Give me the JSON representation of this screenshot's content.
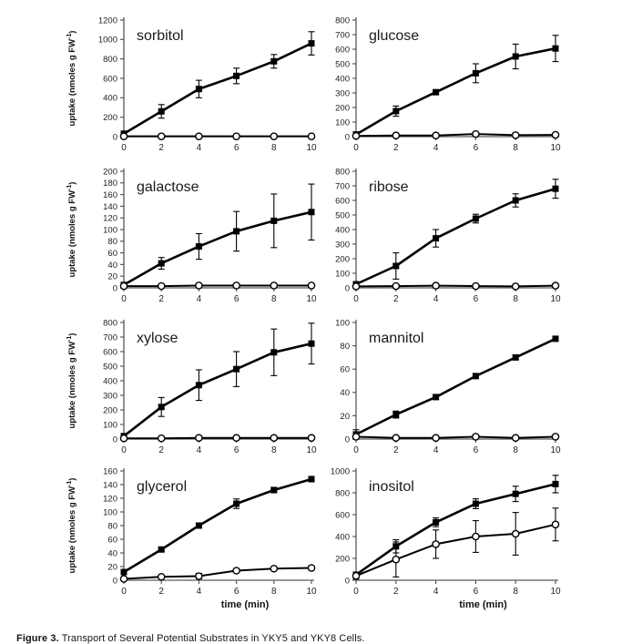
{
  "page": {
    "background": "#ffffff"
  },
  "caption": {
    "label": "Figure 3.",
    "text": " Transport of Several Potential Substrates in YKY5 and YKY8 Cells."
  },
  "axes": {
    "ylabel_main": "uptake (nmoles g FW",
    "ylabel_sup": "-1",
    "ylabel_end": ")",
    "xlabel": "time (min)",
    "xticks": [
      0,
      2,
      4,
      6,
      8,
      10
    ],
    "xlim": [
      0,
      10
    ]
  },
  "colors": {
    "data_line": "#000000",
    "axis_line": "#58595b",
    "tick_text": "#222222",
    "title_text": "#1a1a1a",
    "open_marker_fill": "#ffffff"
  },
  "chart_data": [
    {
      "type": "line",
      "title": "sorbitol",
      "col": "left",
      "row": 0,
      "x": [
        0,
        2,
        4,
        6,
        8,
        10
      ],
      "ylim": [
        0,
        1200
      ],
      "ystep": 200,
      "has_ylabel": true,
      "has_xlabel": false,
      "series": [
        {
          "name": "filled-squares",
          "marker": "filled-square",
          "values": [
            30,
            260,
            490,
            625,
            775,
            960
          ],
          "errors": [
            25,
            70,
            90,
            80,
            70,
            120
          ]
        },
        {
          "name": "open-circles",
          "marker": "open-circle",
          "values": [
            3,
            3,
            3,
            3,
            3,
            3
          ],
          "errors": [
            4,
            4,
            4,
            4,
            4,
            4
          ]
        }
      ]
    },
    {
      "type": "line",
      "title": "glucose",
      "col": "right",
      "row": 0,
      "x": [
        0,
        2,
        4,
        6,
        8,
        10
      ],
      "ylim": [
        0,
        800
      ],
      "ystep": 100,
      "has_ylabel": false,
      "has_xlabel": false,
      "series": [
        {
          "name": "filled-squares",
          "marker": "filled-square",
          "values": [
            15,
            175,
            305,
            435,
            550,
            605
          ],
          "errors": [
            10,
            35,
            15,
            65,
            85,
            90
          ]
        },
        {
          "name": "open-circles",
          "marker": "open-circle",
          "values": [
            5,
            8,
            8,
            18,
            10,
            12
          ],
          "errors": [
            4,
            4,
            4,
            6,
            4,
            4
          ]
        }
      ]
    },
    {
      "type": "line",
      "title": "galactose",
      "col": "left",
      "row": 1,
      "x": [
        0,
        2,
        4,
        6,
        8,
        10
      ],
      "ylim": [
        0,
        200
      ],
      "ystep": 20,
      "has_ylabel": true,
      "has_xlabel": false,
      "series": [
        {
          "name": "filled-squares",
          "marker": "filled-square",
          "values": [
            5,
            42,
            71,
            97,
            115,
            130
          ],
          "errors": [
            4,
            10,
            22,
            34,
            46,
            48
          ]
        },
        {
          "name": "open-circles",
          "marker": "open-circle",
          "values": [
            3,
            3,
            4,
            4,
            4,
            4
          ],
          "errors": [
            2,
            2,
            2,
            2,
            2,
            2
          ]
        }
      ]
    },
    {
      "type": "line",
      "title": "ribose",
      "col": "right",
      "row": 1,
      "x": [
        0,
        2,
        4,
        6,
        8,
        10
      ],
      "ylim": [
        0,
        800
      ],
      "ystep": 100,
      "has_ylabel": false,
      "has_xlabel": false,
      "series": [
        {
          "name": "filled-squares",
          "marker": "filled-square",
          "values": [
            25,
            150,
            340,
            475,
            600,
            680
          ],
          "errors": [
            12,
            90,
            60,
            30,
            45,
            65
          ]
        },
        {
          "name": "open-circles",
          "marker": "open-circle",
          "values": [
            10,
            12,
            15,
            12,
            10,
            15
          ],
          "errors": [
            5,
            5,
            5,
            5,
            5,
            5
          ]
        }
      ]
    },
    {
      "type": "line",
      "title": "xylose",
      "col": "left",
      "row": 2,
      "x": [
        0,
        2,
        4,
        6,
        8,
        10
      ],
      "ylim": [
        0,
        800
      ],
      "ystep": 100,
      "has_ylabel": true,
      "has_xlabel": false,
      "series": [
        {
          "name": "filled-squares",
          "marker": "filled-square",
          "values": [
            20,
            220,
            370,
            480,
            595,
            655
          ],
          "errors": [
            12,
            65,
            105,
            120,
            160,
            140
          ]
        },
        {
          "name": "open-circles",
          "marker": "open-circle",
          "values": [
            5,
            5,
            8,
            8,
            8,
            8
          ],
          "errors": [
            4,
            4,
            4,
            4,
            4,
            4
          ]
        }
      ]
    },
    {
      "type": "line",
      "title": "mannitol",
      "col": "right",
      "row": 2,
      "x": [
        0,
        2,
        4,
        6,
        8,
        10
      ],
      "ylim": [
        0,
        100
      ],
      "ystep": 20,
      "has_ylabel": false,
      "has_xlabel": false,
      "series": [
        {
          "name": "filled-squares",
          "marker": "filled-square",
          "values": [
            4,
            21,
            36,
            54,
            70,
            86
          ],
          "errors": [
            4,
            3,
            2,
            2,
            2,
            2
          ]
        },
        {
          "name": "open-circles",
          "marker": "open-circle",
          "values": [
            2,
            1,
            1,
            2,
            1,
            2
          ],
          "errors": [
            1,
            1,
            1,
            1,
            1,
            1
          ]
        }
      ]
    },
    {
      "type": "line",
      "title": "glycerol",
      "col": "left",
      "row": 3,
      "x": [
        0,
        2,
        4,
        6,
        8,
        10
      ],
      "ylim": [
        0,
        160
      ],
      "ystep": 20,
      "has_ylabel": true,
      "has_xlabel": true,
      "series": [
        {
          "name": "filled-squares",
          "marker": "filled-square",
          "values": [
            12,
            45,
            80,
            112,
            132,
            148
          ],
          "errors": [
            3,
            3,
            3,
            7,
            4,
            4
          ]
        },
        {
          "name": "open-circles",
          "marker": "open-circle",
          "values": [
            2,
            5,
            6,
            14,
            17,
            18
          ],
          "errors": [
            1,
            1,
            4,
            2,
            2,
            3
          ]
        }
      ]
    },
    {
      "type": "line",
      "title": "inositol",
      "col": "right",
      "row": 3,
      "x": [
        0,
        2,
        4,
        6,
        8,
        10
      ],
      "ylim": [
        0,
        1000
      ],
      "ystep": 200,
      "has_ylabel": false,
      "has_xlabel": true,
      "series": [
        {
          "name": "filled-squares",
          "marker": "filled-square",
          "values": [
            50,
            310,
            530,
            700,
            790,
            880
          ],
          "errors": [
            25,
            60,
            40,
            45,
            70,
            80
          ]
        },
        {
          "name": "open-circles",
          "marker": "open-circle",
          "values": [
            40,
            190,
            330,
            400,
            425,
            510
          ],
          "errors": [
            30,
            160,
            130,
            145,
            195,
            150
          ]
        }
      ]
    }
  ]
}
